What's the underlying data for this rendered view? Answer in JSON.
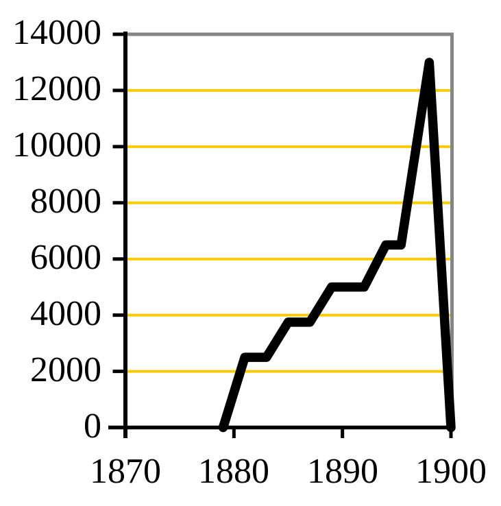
{
  "chart_data": {
    "type": "line",
    "title": "",
    "xlabel": "",
    "ylabel": "",
    "x": [
      1879,
      1881,
      1883,
      1885,
      1887,
      1889,
      1892,
      1894,
      1895.4,
      1898,
      1900
    ],
    "values": [
      0,
      2500,
      2500,
      3750,
      3750,
      5000,
      5000,
      6500,
      6500,
      13000,
      0
    ],
    "series_name": "",
    "xlim": [
      1870,
      1900
    ],
    "ylim": [
      0,
      14000
    ],
    "x_ticks": [
      1870,
      1880,
      1890,
      1900
    ],
    "y_ticks": [
      0,
      2000,
      4000,
      6000,
      8000,
      10000,
      12000,
      14000
    ],
    "x_tick_labels": [
      "1870",
      "1880",
      "1890",
      "1900"
    ],
    "y_tick_labels": [
      "0",
      "2000",
      "4000",
      "6000",
      "8000",
      "10000",
      "12000",
      "14000"
    ],
    "grid": "horizontal only, at 2000 through 12000",
    "gridline_values": [
      2000,
      4000,
      6000,
      8000,
      10000,
      12000
    ],
    "legend": "none",
    "colors": {
      "line": "#000000",
      "gridline": "#F8CB05",
      "plot_border": "#858585",
      "axis": "#000000",
      "background": "#ffffff",
      "text": "#000000"
    }
  }
}
